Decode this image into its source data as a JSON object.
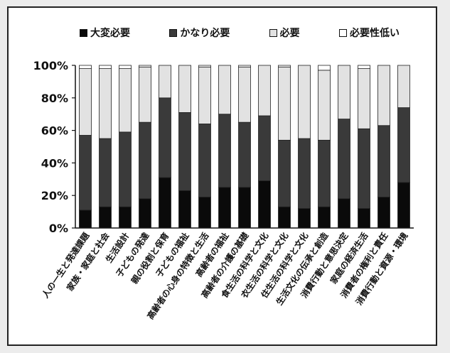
{
  "chart_data": {
    "type": "bar",
    "stacked": true,
    "normalized": true,
    "categories": [
      "人の一生と発達課題",
      "家族・家庭と社会",
      "生活設計",
      "子どもの発達",
      "親の役割と保育",
      "子どもの福祉",
      "高齢者の心身の特徴と生活",
      "高齢者の福祉",
      "高齢者の介護の基礎",
      "食生活の科学と文化",
      "衣生活の科学と文化",
      "住生活の科学と文化",
      "生活文化の伝承と創造",
      "消費行動と意思決定",
      "家庭の経済生活",
      "消費者の権利と責任",
      "消費行動と資源・環境"
    ],
    "series": [
      {
        "name": "大変必要",
        "color": "#0a0a0a",
        "values": [
          11,
          13,
          13,
          18,
          31,
          23,
          19,
          25,
          25,
          29,
          13,
          12,
          13,
          18,
          12,
          19,
          28
        ]
      },
      {
        "name": "かなり必要",
        "color": "#3a3a3a",
        "values": [
          46,
          42,
          46,
          47,
          49,
          48,
          45,
          45,
          40,
          40,
          41,
          43,
          41,
          49,
          49,
          44,
          46
        ]
      },
      {
        "name": "必要",
        "color": "#e2e2e2",
        "values": [
          41,
          43,
          39,
          34,
          20,
          29,
          35,
          30,
          34,
          31,
          45,
          45,
          43,
          33,
          37,
          37,
          26
        ]
      },
      {
        "name": "必要性低い",
        "color": "#ffffff",
        "values": [
          2,
          2,
          2,
          1,
          0,
          0,
          1,
          0,
          1,
          0,
          1,
          0,
          3,
          0,
          2,
          0,
          0
        ]
      }
    ],
    "yticks": [
      "0%",
      "20%",
      "40%",
      "60%",
      "80%",
      "100%"
    ],
    "ylim": [
      0,
      100
    ],
    "legend_position": "top",
    "grid": false
  }
}
